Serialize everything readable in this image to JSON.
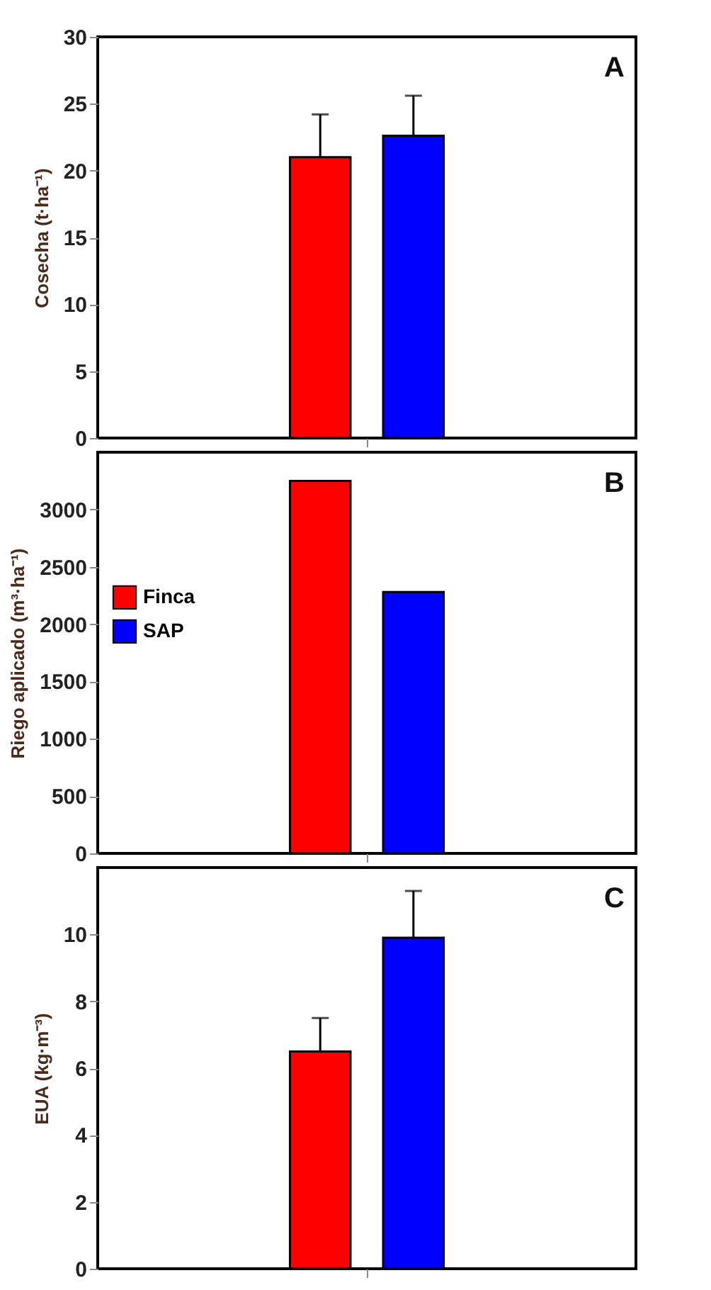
{
  "chart_data": [
    {
      "type": "bar",
      "categories": [
        null
      ],
      "ylabel": "Cosecha (t·ha⁻¹)",
      "annotations": [
        "A"
      ],
      "ylim": [
        0,
        30
      ],
      "yticks": [
        0,
        5,
        10,
        15,
        20,
        25,
        30
      ],
      "tick_labels": "y",
      "grid": false,
      "series": [
        {
          "color": "#ff0000",
          "values": [
            21.0
          ],
          "errors": [
            3.2
          ]
        },
        {
          "color": "#0000ff",
          "values": [
            22.6
          ],
          "errors": [
            3.0
          ]
        }
      ]
    },
    {
      "type": "bar",
      "categories": [
        null
      ],
      "ylabel": "Riego aplicado (m³·ha⁻¹)",
      "annotations": [
        "B"
      ],
      "ylim": [
        0,
        3500
      ],
      "yticks": [
        0,
        500,
        1000,
        1500,
        2000,
        2500,
        3000
      ],
      "tick_labels": "y",
      "grid": false,
      "legend": "left",
      "series": [
        {
          "name": "Finca",
          "color": "#ff0000",
          "values": [
            3250
          ]
        },
        {
          "name": "SAP",
          "color": "#0000ff",
          "values": [
            2280
          ]
        }
      ]
    },
    {
      "type": "bar",
      "categories": [
        null
      ],
      "ylabel": "EUA (kg·m⁻³)",
      "annotations": [
        "C"
      ],
      "ylim": [
        0,
        12
      ],
      "yticks": [
        0,
        2,
        4,
        6,
        8,
        10
      ],
      "tick_labels": "y",
      "grid": false,
      "series": [
        {
          "color": "#ff0000",
          "values": [
            6.5
          ],
          "errors": [
            1.0
          ]
        },
        {
          "color": "#0000ff",
          "values": [
            9.9
          ],
          "errors": [
            1.4
          ]
        }
      ]
    }
  ]
}
